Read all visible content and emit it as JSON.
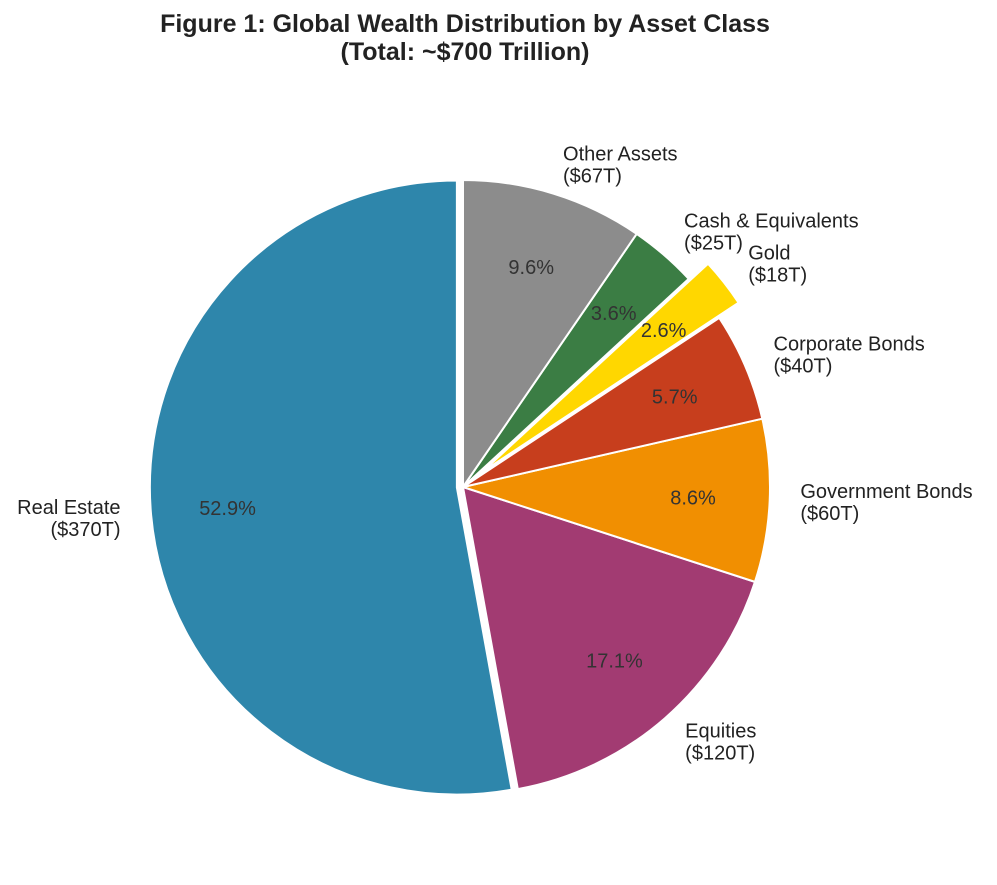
{
  "chart_data": {
    "type": "pie",
    "title": "Figure 1: Global Wealth Distribution by Asset Class",
    "subtitle": "(Total: ~$700 Trillion)",
    "start_angle_deg": 90,
    "direction": "counterclockwise",
    "slices": [
      {
        "label": "Real Estate",
        "value_label": "($370T)",
        "value": 370,
        "pct": "52.9%",
        "color": "#2E86AB",
        "explode": 0.02
      },
      {
        "label": "Equities",
        "value_label": "($120T)",
        "value": 120,
        "pct": "17.1%",
        "color": "#A23B72",
        "explode": 0
      },
      {
        "label": "Government Bonds",
        "value_label": "($60T)",
        "value": 60,
        "pct": "8.6%",
        "color": "#F18F01",
        "explode": 0
      },
      {
        "label": "Corporate Bonds",
        "value_label": "($40T)",
        "value": 40,
        "pct": "5.7%",
        "color": "#C73E1D",
        "explode": 0
      },
      {
        "label": "Gold",
        "value_label": "($18T)",
        "value": 18,
        "pct": "2.6%",
        "color": "#FFD700",
        "explode": 0.08
      },
      {
        "label": "Cash & Equivalents",
        "value_label": "($25T)",
        "value": 25,
        "pct": "3.6%",
        "color": "#3B7D44",
        "explode": 0
      },
      {
        "label": "Other Assets",
        "value_label": "($67T)",
        "value": 67,
        "pct": "9.6%",
        "color": "#8C8C8C",
        "explode": 0
      }
    ]
  }
}
